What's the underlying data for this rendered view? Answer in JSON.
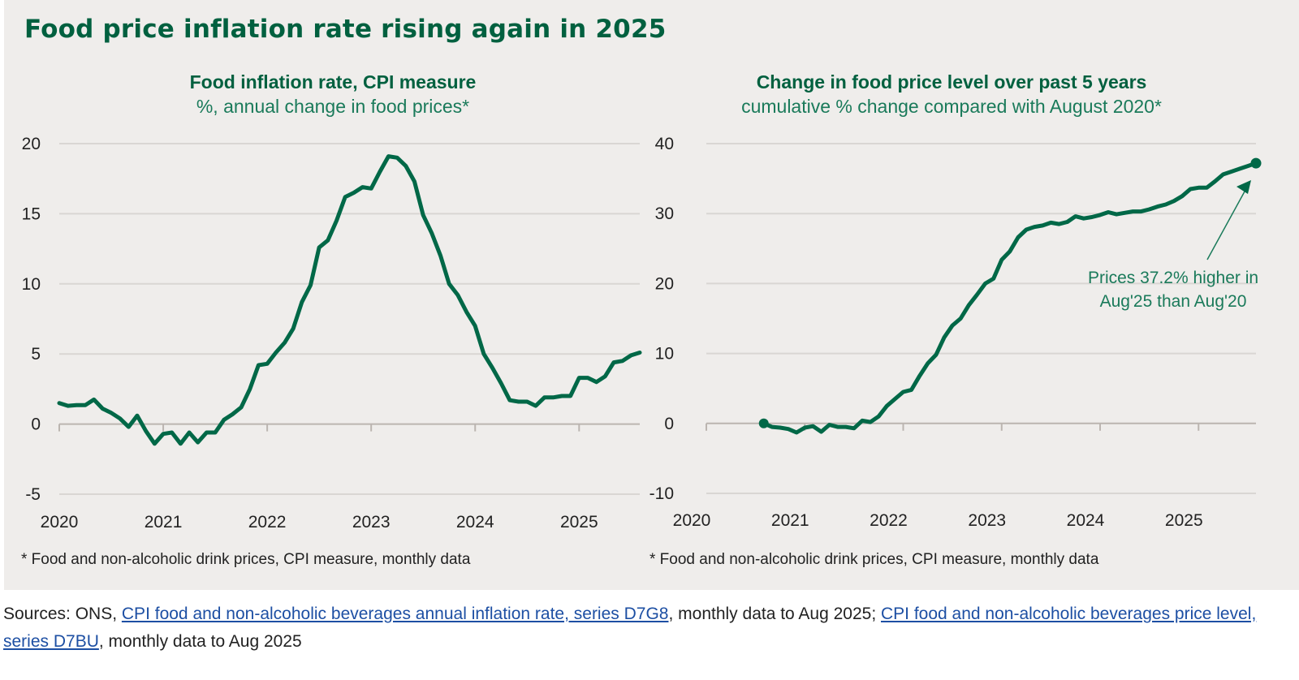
{
  "title": "Food price inflation rate rising again in 2025",
  "theme": {
    "accent": "#006847",
    "background": "#efedeb",
    "link": "#1d4fa3"
  },
  "chart_data": [
    {
      "type": "line",
      "title": "Food inflation rate, CPI measure",
      "subtitle": "%, annual change in food prices*",
      "xlabel": "",
      "ylabel": "",
      "ylim": [
        -5,
        20
      ],
      "yticks": [
        "20",
        "15",
        "10",
        "5",
        "0",
        "-5"
      ],
      "ytick_values": [
        20,
        15,
        10,
        5,
        0,
        -5
      ],
      "xticks": [
        "2020",
        "2021",
        "2022",
        "2023",
        "2024",
        "2025"
      ],
      "x_start": "Jan 2020",
      "x_end": "Aug 2025",
      "frequency": "monthly",
      "grid": true,
      "legend": "none",
      "footnote": "* Food and non-alcoholic drink prices, CPI measure, monthly data",
      "series": [
        {
          "name": "Food inflation rate",
          "color": "#006847",
          "values": [
            1.5,
            1.3,
            1.35,
            1.35,
            1.75,
            1.1,
            0.8,
            0.4,
            -0.2,
            0.6,
            -0.5,
            -1.4,
            -0.7,
            -0.6,
            -1.4,
            -0.6,
            -1.3,
            -0.6,
            -0.6,
            0.3,
            0.7,
            1.2,
            2.5,
            4.2,
            4.3,
            5.1,
            5.8,
            6.8,
            8.7,
            9.9,
            12.6,
            13.1,
            14.5,
            16.2,
            16.5,
            16.9,
            16.8,
            18.0,
            19.1,
            19.0,
            18.4,
            17.3,
            14.9,
            13.6,
            12.0,
            10.0,
            9.2,
            8.0,
            7.0,
            5.0,
            4.0,
            2.9,
            1.7,
            1.6,
            1.6,
            1.3,
            1.9,
            1.9,
            2.0,
            2.0,
            3.3,
            3.3,
            3.0,
            3.4,
            4.4,
            4.5,
            4.9,
            5.1
          ]
        }
      ]
    },
    {
      "type": "line",
      "title": "Change in food price level over past 5 years",
      "subtitle": "cumulative % change compared with August 2020*",
      "xlabel": "",
      "ylabel": "",
      "ylim": [
        -10,
        40
      ],
      "yticks": [
        "40",
        "30",
        "20",
        "10",
        "0",
        "-10"
      ],
      "ytick_values": [
        40,
        30,
        20,
        10,
        0,
        -10
      ],
      "xticks": [
        "2020",
        "2021",
        "2022",
        "2023",
        "2024",
        "2025"
      ],
      "x_axis_start": "Jan 2020",
      "x_start": "Aug 2020",
      "x_end": "Aug 2025",
      "frequency": "monthly",
      "grid": true,
      "legend": "none",
      "annotation": {
        "line1": "Prices 37.2% higher in",
        "line2": "Aug'25 than Aug'20",
        "value": 37.2
      },
      "footnote": "* Food and non-alcoholic drink prices, CPI measure, monthly data",
      "series": [
        {
          "name": "Cumulative change since Aug 2020",
          "color": "#006847",
          "values": [
            0,
            -0.5,
            -0.6,
            -0.8,
            -1.3,
            -0.6,
            -0.4,
            -1.2,
            -0.2,
            -0.5,
            -0.5,
            -0.7,
            0.4,
            0.2,
            1.0,
            2.5,
            3.5,
            4.5,
            4.8,
            6.8,
            8.6,
            9.8,
            12.3,
            14.0,
            15.0,
            16.9,
            18.4,
            20.0,
            20.7,
            23.4,
            24.6,
            26.6,
            27.7,
            28.1,
            28.3,
            28.7,
            28.5,
            28.8,
            29.6,
            29.3,
            29.5,
            29.8,
            30.2,
            29.9,
            30.1,
            30.3,
            30.3,
            30.6,
            31.0,
            31.3,
            31.8,
            32.5,
            33.5,
            33.7,
            33.7,
            34.6,
            35.6,
            36.0,
            36.4,
            36.8,
            37.2
          ]
        }
      ]
    }
  ],
  "sources": {
    "prefix": "Sources: ONS, ",
    "link1": "CPI food and non-alcoholic beverages annual inflation rate, series D7G8",
    "mid": ", monthly data to Aug 2025; ",
    "link2": "CPI food and non-alcoholic beverages price level, series D7BU",
    "suffix": ", monthly data to Aug 2025"
  }
}
